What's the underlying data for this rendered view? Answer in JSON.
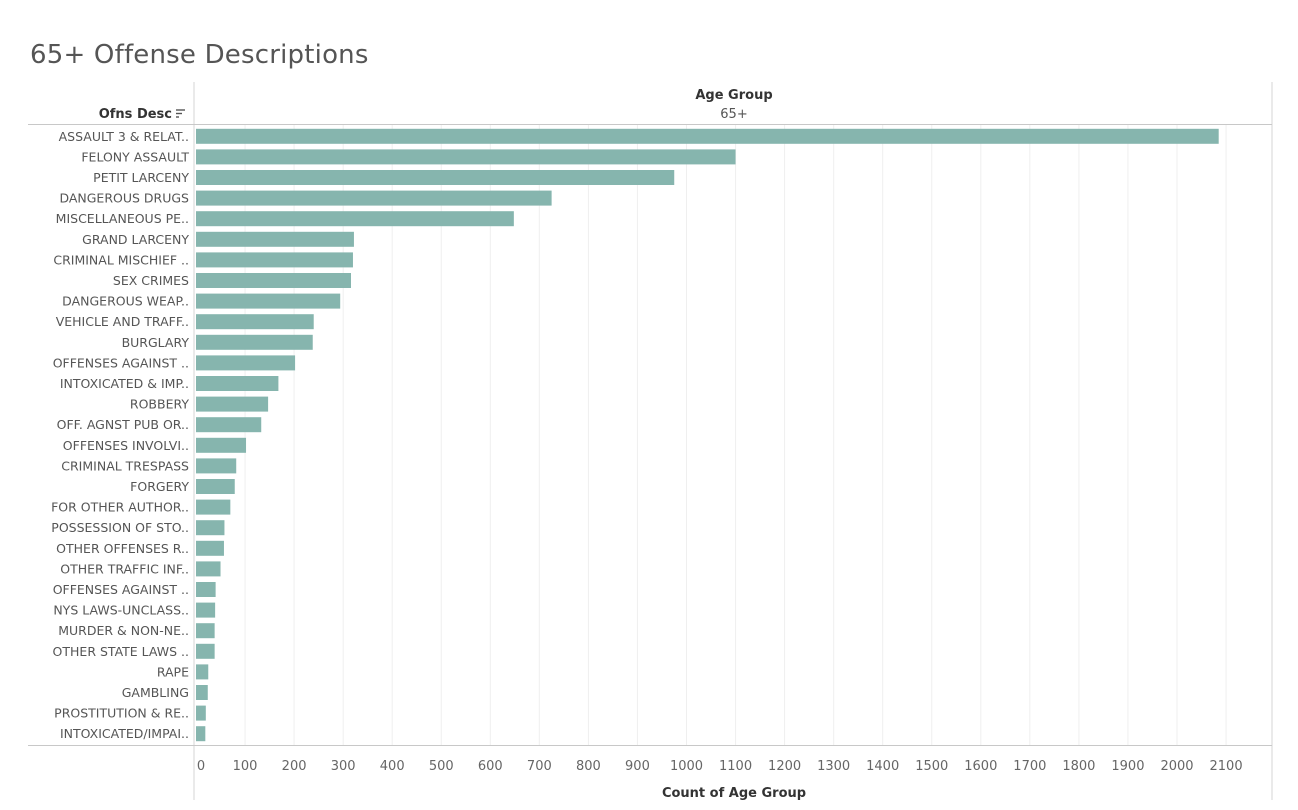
{
  "sheet_title": "65+ Offense Descriptions",
  "chart_data": {
    "type": "bar",
    "orientation": "horizontal",
    "row_header": "Ofns Desc",
    "column_header": "Age Group",
    "column_value": "65+",
    "xlabel": "Count of Age Group",
    "xlim": [
      0,
      2200
    ],
    "xticks": [
      "0",
      "100",
      "200",
      "300",
      "400",
      "500",
      "600",
      "700",
      "800",
      "900",
      "1000",
      "1100",
      "1200",
      "1300",
      "1400",
      "1500",
      "1600",
      "1700",
      "1800",
      "1900",
      "2000",
      "2100"
    ],
    "grid": true,
    "bar_color": "#86b5ae",
    "categories": [
      "ASSAULT 3 & RELAT..",
      "FELONY ASSAULT",
      "PETIT LARCENY",
      "DANGEROUS DRUGS",
      "MISCELLANEOUS PE..",
      "GRAND LARCENY",
      "CRIMINAL MISCHIEF ..",
      "SEX CRIMES",
      "DANGEROUS WEAP..",
      "VEHICLE AND TRAFF..",
      "BURGLARY",
      "OFFENSES AGAINST ..",
      "INTOXICATED & IMP..",
      "ROBBERY",
      "OFF. AGNST PUB OR..",
      "OFFENSES INVOLVI..",
      "CRIMINAL TRESPASS",
      "FORGERY",
      "FOR OTHER AUTHOR..",
      "POSSESSION OF STO..",
      "OTHER OFFENSES R..",
      "OTHER TRAFFIC INF..",
      "OFFENSES AGAINST ..",
      "NYS LAWS-UNCLASS..",
      "MURDER & NON-NE..",
      "OTHER STATE LAWS ..",
      "RAPE",
      "GAMBLING",
      "PROSTITUTION & RE..",
      "INTOXICATED/IMPAI.."
    ],
    "values": [
      2085,
      1100,
      975,
      725,
      648,
      322,
      320,
      316,
      294,
      240,
      238,
      202,
      168,
      147,
      133,
      102,
      82,
      79,
      70,
      58,
      57,
      50,
      40,
      39,
      38,
      38,
      25,
      24,
      20,
      19
    ]
  }
}
